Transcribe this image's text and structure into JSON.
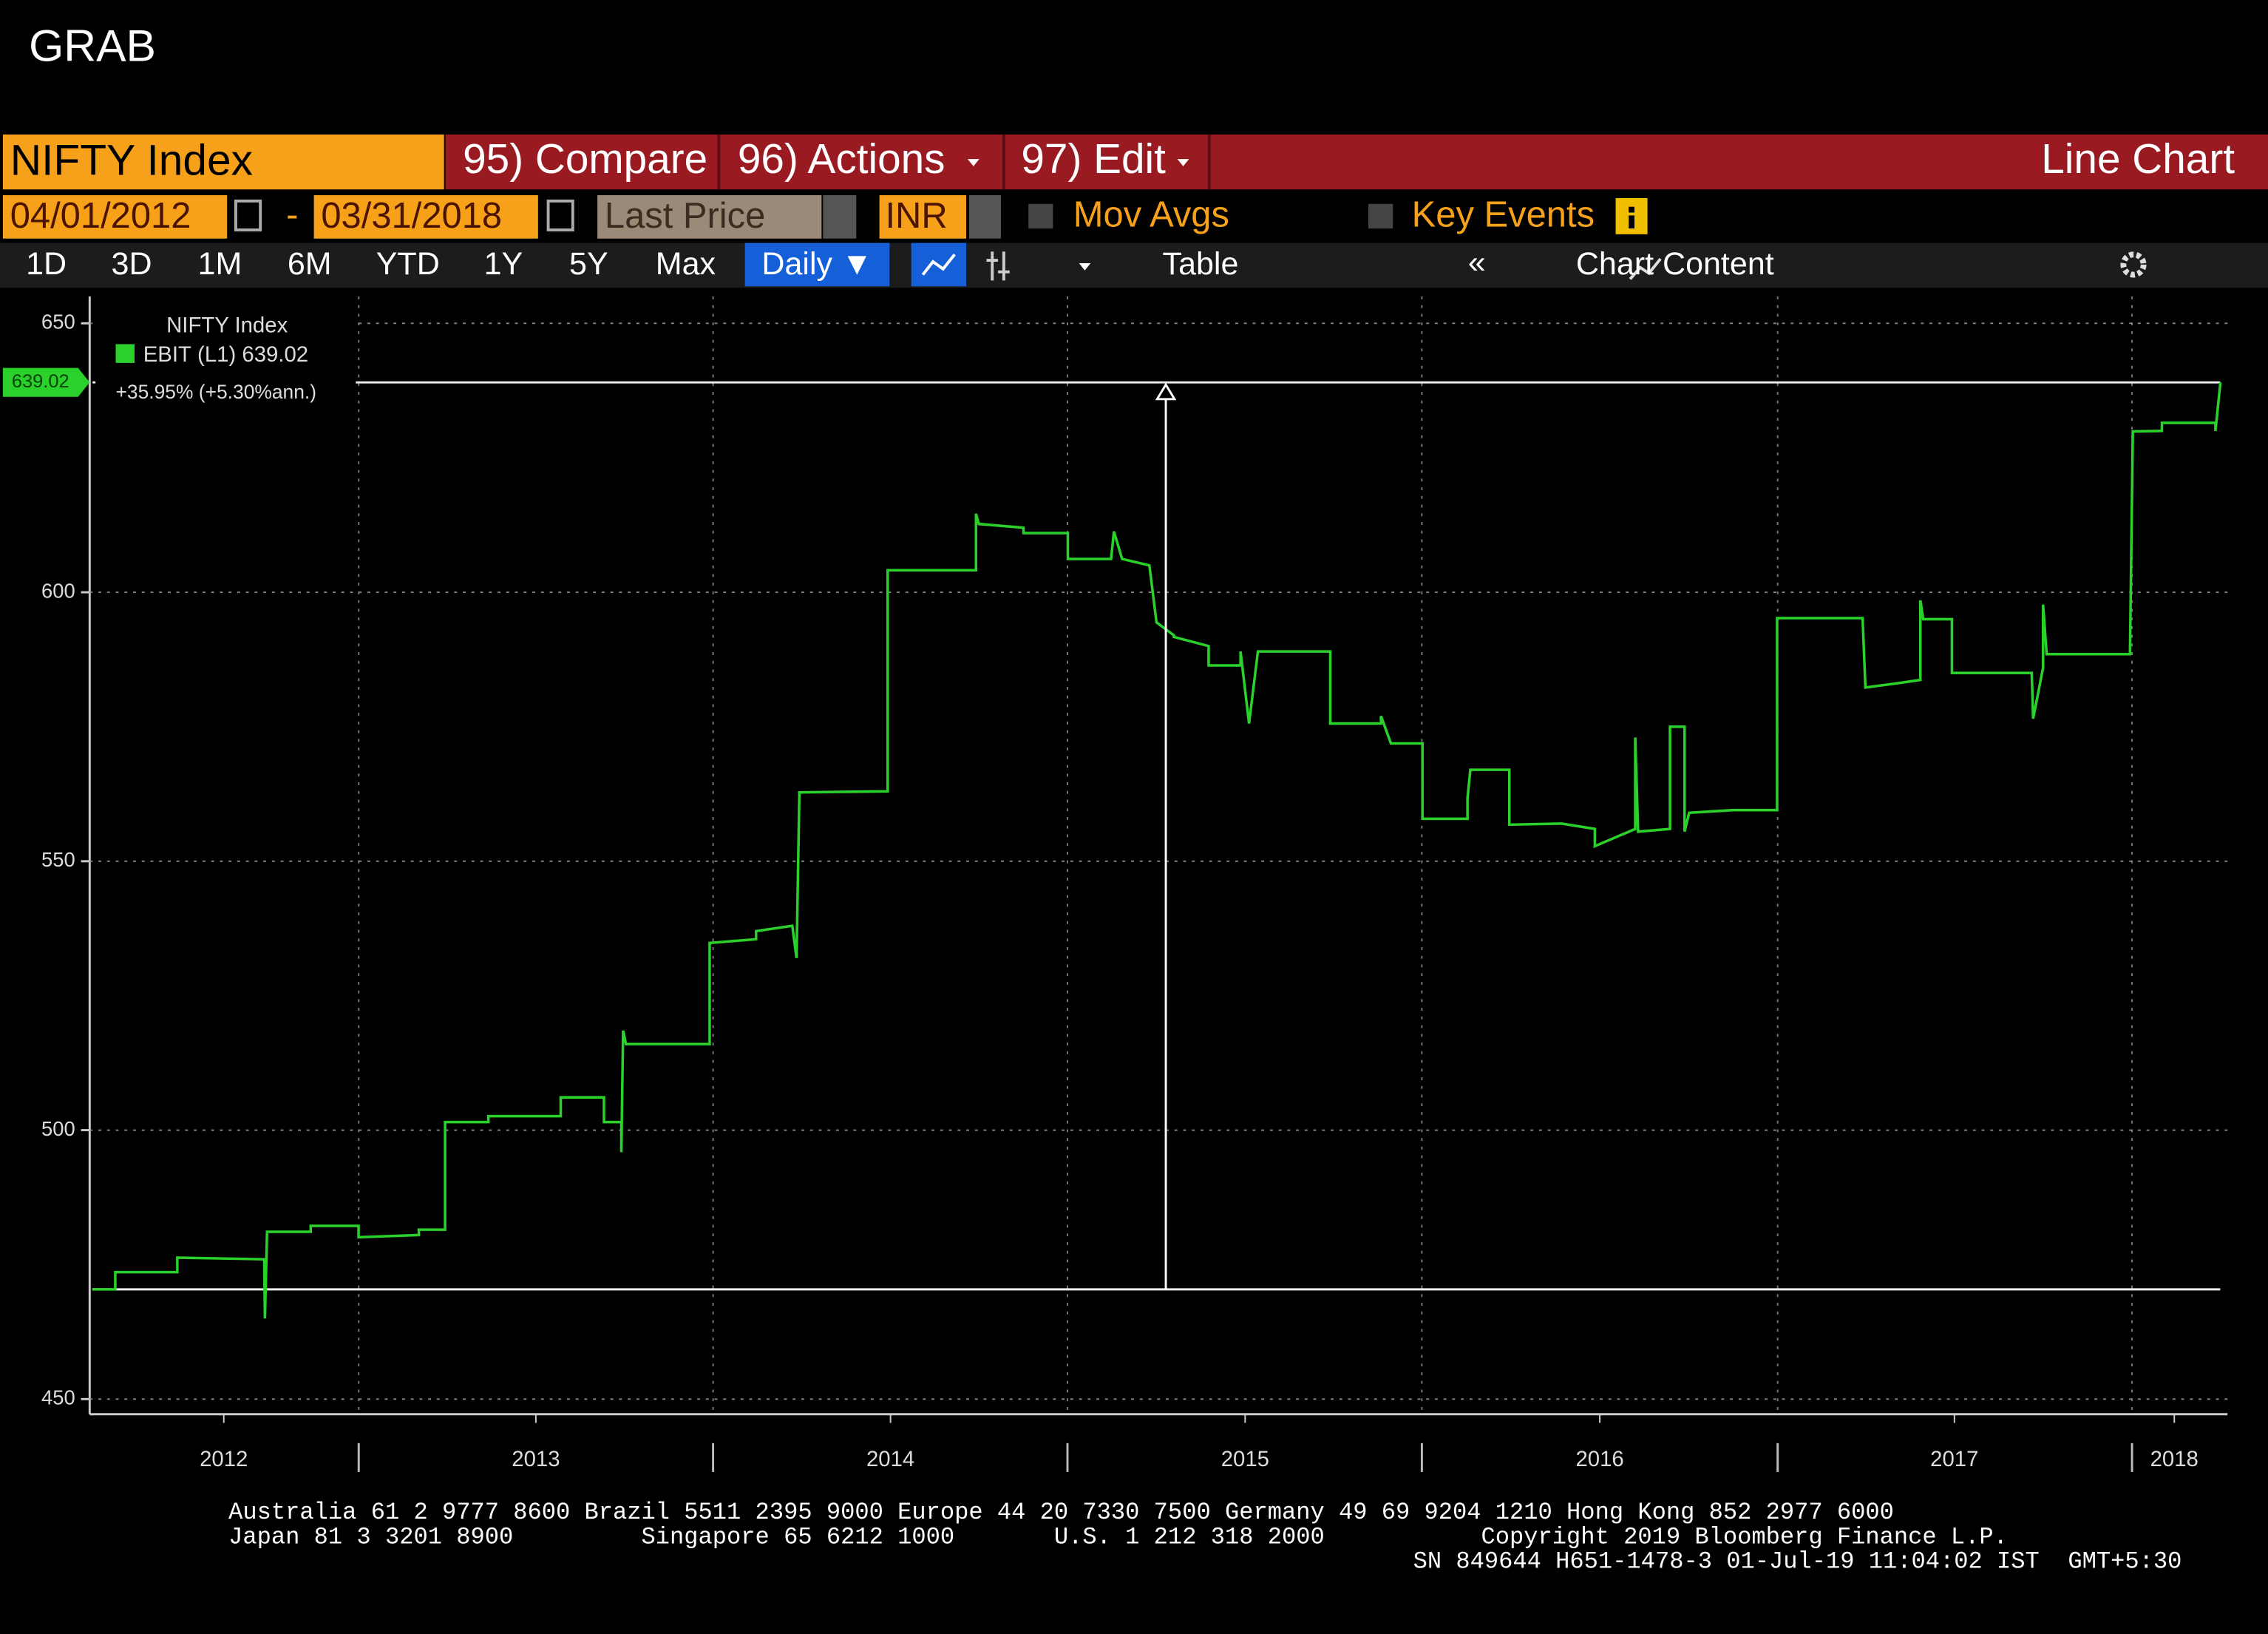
{
  "header": {
    "title": "GRAB"
  },
  "toolbar": {
    "security": "NIFTY Index",
    "compare": "95) Compare",
    "actions": "96) Actions",
    "edit": "97) Edit",
    "chart_kind": "Line Chart",
    "start_date": "04/01/2012",
    "date_separator": "-",
    "end_date": "03/31/2018",
    "field": "Last Price",
    "currency": "INR",
    "mov_avgs": "Mov Avgs",
    "key_events": "Key Events",
    "periods": [
      "1D",
      "3D",
      "1M",
      "6M",
      "YTD",
      "1Y",
      "5Y",
      "Max"
    ],
    "frequency": "Daily ▼",
    "table": "Table",
    "collapse": "«",
    "chart_content": "Chart Content"
  },
  "chart_data": {
    "type": "line",
    "legend_title": "NIFTY Index",
    "annotation": "+35.95% (+5.30%ann.)",
    "series": [
      {
        "name": "EBIT",
        "axis_label": "(L1)",
        "color": "#2ad12a",
        "x": [
          2012.249,
          2012.314,
          2012.314,
          2012.489,
          2012.489,
          2012.734,
          2012.736,
          2012.742,
          2012.865,
          2012.865,
          2013.0,
          2013.0,
          2013.17,
          2013.17,
          2013.244,
          2013.244,
          2013.366,
          2013.366,
          2013.57,
          2013.57,
          2013.692,
          2013.692,
          2013.741,
          2013.741,
          2013.746,
          2013.754,
          2013.99,
          2013.99,
          2014.121,
          2014.121,
          2014.223,
          2014.235,
          2014.243,
          2014.492,
          2014.492,
          2014.741,
          2014.741,
          2014.749,
          2014.875,
          2014.875,
          2015.0,
          2015.0,
          2015.122,
          2015.13,
          2015.153,
          2015.23,
          2015.25,
          2015.299,
          2015.299,
          2015.397,
          2015.397,
          2015.487,
          2015.487,
          2015.511,
          2015.536,
          2015.74,
          2015.74,
          2015.883,
          2015.883,
          2015.911,
          2016.0,
          2016.0,
          2016.127,
          2016.127,
          2016.135,
          2016.245,
          2016.245,
          2016.392,
          2016.486,
          2016.486,
          2016.6,
          2016.6,
          2016.608,
          2016.698,
          2016.698,
          2016.739,
          2016.739,
          2016.752,
          2016.875,
          2017.0,
          2017.0,
          2017.241,
          2017.249,
          2017.33,
          2017.404,
          2017.404,
          2017.412,
          2017.493,
          2017.493,
          2017.718,
          2017.722,
          2017.75,
          2017.75,
          2017.76,
          2017.995,
          2018.003,
          2018.085,
          2018.085,
          2018.236,
          2018.236,
          2018.25
        ],
        "values": [
          470.4,
          470.4,
          473.6,
          473.6,
          476.3,
          476,
          465,
          481.1,
          481.1,
          482.2,
          482.2,
          480.1,
          480.5,
          481.5,
          481.5,
          501.5,
          501.5,
          502.6,
          502.6,
          506.1,
          506.1,
          501.5,
          501.5,
          495.9,
          518.5,
          516,
          516,
          534.8,
          535.5,
          537,
          538,
          532,
          562.8,
          563,
          604.1,
          604.1,
          614.6,
          612.7,
          612,
          611,
          611,
          606.2,
          606.2,
          611.3,
          606.2,
          605,
          594.4,
          592,
          591.7,
          590,
          586.4,
          586.4,
          589,
          575.6,
          589,
          589,
          575.6,
          575.6,
          577,
          571.9,
          571.9,
          557.9,
          557.9,
          561.7,
          567,
          567,
          556.8,
          557,
          556,
          552.8,
          556,
          573,
          555.5,
          556,
          575,
          575,
          555.5,
          559,
          559.5,
          559.5,
          595.2,
          595.2,
          582.3,
          583,
          583.7,
          598.5,
          595,
          595,
          585,
          585,
          576.5,
          586,
          597.7,
          588.5,
          588.5,
          629.9,
          630,
          631.5,
          631.5,
          630,
          639.02
        ]
      }
    ],
    "xlim": [
      2012.25,
      2018.27
    ],
    "xticks": [
      {
        "value": 2012.62,
        "label": "2012"
      },
      {
        "value": 2013.5,
        "label": "2013"
      },
      {
        "value": 2014.5,
        "label": "2014"
      },
      {
        "value": 2015.5,
        "label": "2015"
      },
      {
        "value": 2016.5,
        "label": "2016"
      },
      {
        "value": 2017.5,
        "label": "2017"
      },
      {
        "value": 2018.12,
        "label": "2018"
      }
    ],
    "ylim": [
      448,
      655
    ],
    "yticks": [
      450,
      500,
      550,
      600,
      650
    ],
    "grid": true
  },
  "footer": {
    "lines": [
      "Australia 61 2 9777 8600 Brazil 5511 2395 9000 Europe 44 20 7330 7500 Germany 49 69 9204 1210 Hong Kong 852 2977 6000",
      "Japan 81 3 3201 8900         Singapore 65 6212 1000       U.S. 1 212 318 2000           Copyright 2019 Bloomberg Finance L.P.",
      "SN 849644 H651-1478-3 01-Jul-19 11:04:02 IST  GMT+5:30"
    ]
  }
}
